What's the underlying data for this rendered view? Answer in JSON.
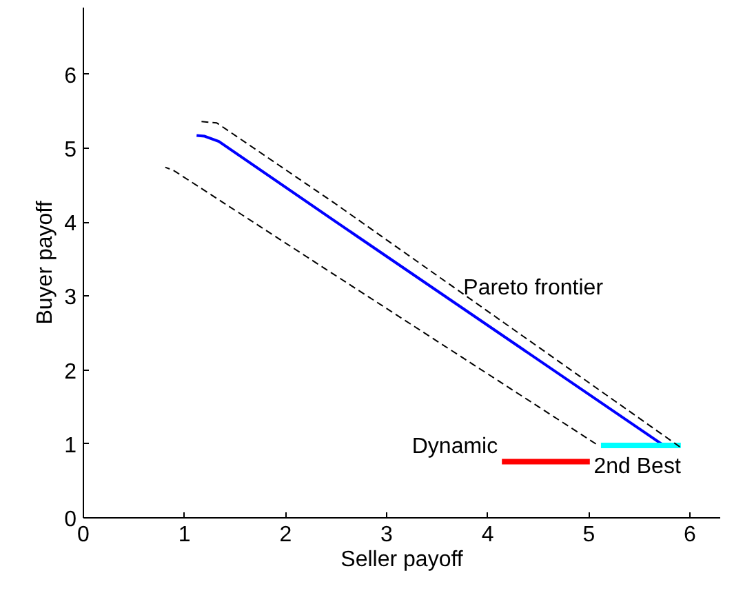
{
  "chart_data": {
    "type": "line",
    "xlabel": "Seller payoff",
    "ylabel": "Buyer payoff",
    "xlim": [
      0,
      6.3
    ],
    "ylim": [
      0,
      6.9
    ],
    "xticks": [
      0,
      1,
      2,
      3,
      4,
      5,
      6
    ],
    "yticks": [
      0,
      1,
      2,
      3,
      4,
      5,
      6
    ],
    "grid": false,
    "series": [
      {
        "name": "Pareto frontier",
        "color": "#000000",
        "line_style": "dashed",
        "x": [
          1.16,
          1.32,
          2.48,
          5.9
        ],
        "values": [
          5.36,
          5.34,
          4.26,
          0.96
        ]
      },
      {
        "color": "#000000",
        "line_style": "dashed",
        "x": [
          0.81,
          0.89,
          2.48,
          5.07
        ],
        "values": [
          4.74,
          4.7,
          3.29,
          1.0
        ]
      },
      {
        "color": "#0000ff",
        "line_style": "solid",
        "x": [
          1.12,
          1.2,
          1.34,
          2.48,
          5.74
        ],
        "values": [
          5.17,
          5.16,
          5.09,
          4.02,
          0.98
        ]
      },
      {
        "name": "2nd Best",
        "color": "#00ffff",
        "line_style": "solid",
        "x": [
          5.12,
          5.91
        ],
        "values": [
          0.98,
          0.98
        ]
      },
      {
        "name": "Dynamic",
        "color": "#ff0000",
        "line_style": "solid",
        "x": [
          4.14,
          5.01
        ],
        "values": [
          0.76,
          0.76
        ]
      }
    ]
  }
}
